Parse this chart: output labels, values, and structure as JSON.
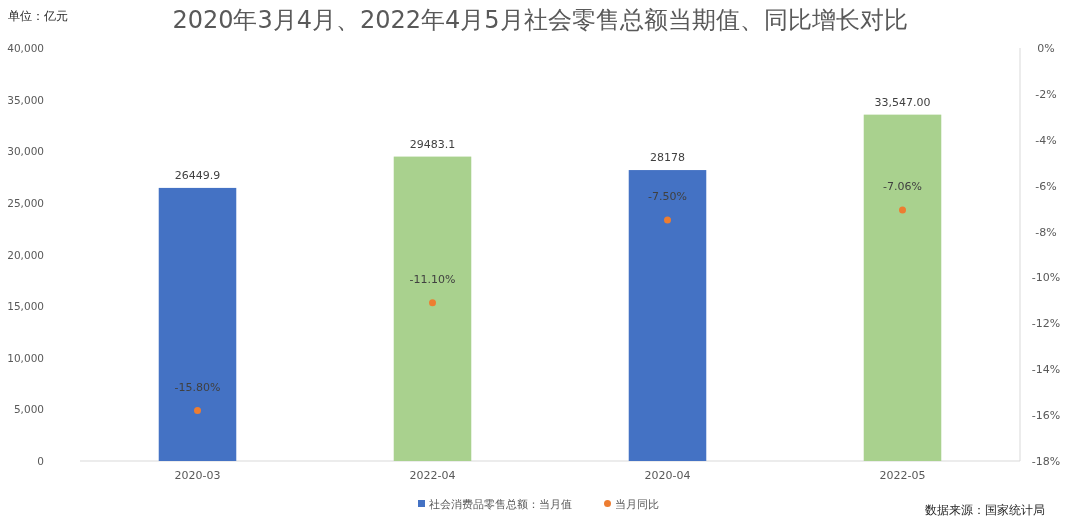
{
  "chart_data": {
    "type": "bar",
    "title": "2020年3月4月、2022年4月5月社会零售总额当期值、同比增长对比",
    "categories": [
      "2020-03",
      "2022-04",
      "2020-04",
      "2022-05"
    ],
    "series": [
      {
        "name": "社会消费品零售总额：当月值",
        "color": "#4472c4",
        "colors": [
          "#4472c4",
          "#a9d18e",
          "#4472c4",
          "#a9d18e"
        ],
        "values": [
          26449.9,
          29483.1,
          28178,
          33547.0
        ],
        "value_labels": [
          "26449.9",
          "29483.1",
          "28178",
          "33,547.00"
        ]
      },
      {
        "name": "当月同比",
        "type": "scatter",
        "axis": "y2",
        "color": "#ed7d31",
        "marker": "circle",
        "values": [
          -15.8,
          -11.1,
          -7.5,
          -7.06
        ],
        "value_labels": [
          "-15.80%",
          "-11.10%",
          "-7.50%",
          "-7.06%"
        ]
      }
    ],
    "ylim": [
      0,
      40000
    ],
    "yticks": [
      0,
      {
        "value": 5000,
        "label": "5,000"
      },
      {
        "value": 10000,
        "label": "10,000"
      },
      {
        "value": 15000,
        "label": "15,000"
      },
      {
        "value": 20000,
        "label": "20,000"
      },
      {
        "value": 25000,
        "label": "25,000"
      },
      {
        "value": 30000,
        "label": "30,000"
      },
      {
        "value": 35000,
        "label": "35,000"
      },
      {
        "value": 40000,
        "label": "40,000"
      }
    ],
    "y2lim": [
      -18,
      0
    ],
    "y2ticks": [
      {
        "value": -18,
        "label": "-18%"
      },
      {
        "value": -16,
        "label": "-16%"
      },
      {
        "value": -14,
        "label": "-14%"
      },
      {
        "value": -12,
        "label": "-12%"
      },
      {
        "value": -10,
        "label": "-10%"
      },
      {
        "value": -8,
        "label": "-8%"
      },
      {
        "value": -6,
        "label": "-6%"
      },
      {
        "value": -4,
        "label": "-4%"
      },
      {
        "value": -2,
        "label": "-2%"
      },
      {
        "value": 0,
        "label": "0%"
      }
    ],
    "legend": "bottom",
    "annotations": [
      "单位：亿元",
      "数据来源：国家统计局"
    ]
  }
}
